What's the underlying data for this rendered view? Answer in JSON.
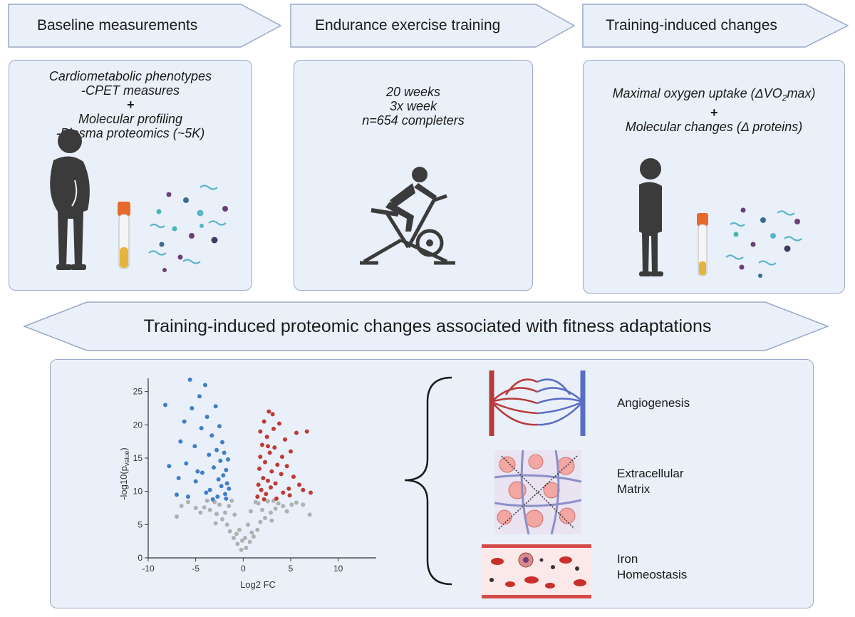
{
  "steps": [
    {
      "label": "Baseline measurements"
    },
    {
      "label": "Endurance exercise training"
    },
    {
      "label": "Training-induced changes"
    }
  ],
  "panel1": {
    "line1": "Cardiometabolic phenotypes",
    "line2": "-CPET measures",
    "line3": "+",
    "line4": "Molecular profiling",
    "line5": "-Plasma proteomics (~5K)"
  },
  "panel2": {
    "line1": "20 weeks",
    "line2": "3x week",
    "line3": "n=654 completers"
  },
  "panel3": {
    "line1_pre": "Maximal oxygen uptake (ΔVO",
    "line1_sub": "2",
    "line1_post": "max)",
    "line2": "+",
    "line3": "Molecular changes (Δ proteins)"
  },
  "banner": "Training-induced proteomic changes associated with fitness adaptations",
  "chart_data": {
    "type": "scatter",
    "xlabel": "Log2 FC",
    "ylabel_main": "-log10(p",
    "ylabel_sub": "value",
    "ylabel_close": ")",
    "xlim": [
      -10,
      14
    ],
    "ylim": [
      0,
      27
    ],
    "xticks": [
      -10,
      -5,
      0,
      5,
      10
    ],
    "yticks": [
      0,
      5,
      10,
      15,
      20,
      25
    ],
    "series": [
      {
        "color": "#b0b0b0",
        "points": [
          [
            -0.2,
            1.2
          ],
          [
            0.3,
            1.5
          ],
          [
            -0.6,
            2.1
          ],
          [
            0.7,
            2.4
          ],
          [
            -1.0,
            3.0
          ],
          [
            1.1,
            3.2
          ],
          [
            -1.4,
            4.0
          ],
          [
            1.5,
            4.2
          ],
          [
            -1.7,
            5.0
          ],
          [
            1.8,
            5.4
          ],
          [
            -2.2,
            5.8
          ],
          [
            2.3,
            6.0
          ],
          [
            -2.8,
            6.6
          ],
          [
            2.9,
            6.8
          ],
          [
            -3.5,
            7.2
          ],
          [
            3.4,
            7.4
          ],
          [
            -4.1,
            7.6
          ],
          [
            4.2,
            7.8
          ],
          [
            -5.0,
            7.5
          ],
          [
            5.1,
            8.0
          ],
          [
            -6.5,
            7.8
          ],
          [
            6.3,
            8.0
          ],
          [
            -0.9,
            6.5
          ],
          [
            0.8,
            7.0
          ],
          [
            -1.5,
            7.8
          ],
          [
            1.6,
            8.2
          ],
          [
            -2.5,
            8.0
          ],
          [
            2.6,
            8.5
          ],
          [
            -3.0,
            8.4
          ],
          [
            3.2,
            8.6
          ],
          [
            -0.4,
            4.2
          ],
          [
            0.5,
            5.0
          ],
          [
            -1.9,
            6.8
          ],
          [
            2.0,
            7.2
          ],
          [
            -4.5,
            6.8
          ],
          [
            4.6,
            7.0
          ],
          [
            -7.0,
            6.2
          ],
          [
            7.0,
            6.5
          ],
          [
            -1.2,
            8.6
          ],
          [
            1.3,
            8.4
          ],
          [
            -0.7,
            3.6
          ],
          [
            0.9,
            3.8
          ],
          [
            -2.9,
            5.2
          ],
          [
            3.0,
            5.6
          ],
          [
            -0.1,
            2.6
          ],
          [
            0.2,
            3.0
          ],
          [
            -5.8,
            8.4
          ],
          [
            5.6,
            8.3
          ],
          [
            -3.8,
            8.6
          ],
          [
            3.7,
            8.2
          ]
        ]
      },
      {
        "color": "#3f7ec8",
        "points": [
          [
            -8.2,
            23.0
          ],
          [
            -7.8,
            13.8
          ],
          [
            -7.0,
            9.5
          ],
          [
            -6.6,
            17.5
          ],
          [
            -6.2,
            20.5
          ],
          [
            -6.0,
            14.2
          ],
          [
            -5.6,
            26.8
          ],
          [
            -5.4,
            22.5
          ],
          [
            -5.1,
            16.8
          ],
          [
            -5.0,
            11.5
          ],
          [
            -4.6,
            24.3
          ],
          [
            -4.4,
            19.5
          ],
          [
            -4.3,
            12.8
          ],
          [
            -4.0,
            26.0
          ],
          [
            -3.8,
            21.2
          ],
          [
            -3.6,
            15.5
          ],
          [
            -3.5,
            10.2
          ],
          [
            -3.3,
            18.4
          ],
          [
            -3.1,
            13.6
          ],
          [
            -2.9,
            22.8
          ],
          [
            -2.8,
            16.2
          ],
          [
            -2.6,
            11.8
          ],
          [
            -2.5,
            19.8
          ],
          [
            -2.4,
            14.6
          ],
          [
            -2.3,
            10.8
          ],
          [
            -2.2,
            17.4
          ],
          [
            -2.1,
            12.4
          ],
          [
            -2.0,
            15.8
          ],
          [
            -1.9,
            9.6
          ],
          [
            -1.8,
            13.2
          ],
          [
            -1.7,
            11.2
          ],
          [
            -1.6,
            14.8
          ],
          [
            -1.5,
            10.4
          ],
          [
            -3.9,
            9.8
          ],
          [
            -4.8,
            13.0
          ],
          [
            -5.8,
            9.2
          ],
          [
            -6.8,
            12.0
          ],
          [
            -3.2,
            8.8
          ],
          [
            -2.7,
            9.2
          ],
          [
            -1.8,
            8.9
          ]
        ]
      },
      {
        "color": "#c03a32",
        "points": [
          [
            1.5,
            9.2
          ],
          [
            1.6,
            11.0
          ],
          [
            1.7,
            13.4
          ],
          [
            1.8,
            15.2
          ],
          [
            1.9,
            10.2
          ],
          [
            2.0,
            17.0
          ],
          [
            2.1,
            12.0
          ],
          [
            2.2,
            20.5
          ],
          [
            2.3,
            14.4
          ],
          [
            2.4,
            9.6
          ],
          [
            2.5,
            18.2
          ],
          [
            2.6,
            11.6
          ],
          [
            2.7,
            22.0
          ],
          [
            2.8,
            15.8
          ],
          [
            2.9,
            10.6
          ],
          [
            3.0,
            13.0
          ],
          [
            3.2,
            19.4
          ],
          [
            3.3,
            16.6
          ],
          [
            3.4,
            11.2
          ],
          [
            3.6,
            14.0
          ],
          [
            3.8,
            20.2
          ],
          [
            4.0,
            12.6
          ],
          [
            4.2,
            9.8
          ],
          [
            4.4,
            17.8
          ],
          [
            4.6,
            13.8
          ],
          [
            4.8,
            10.4
          ],
          [
            5.0,
            16.0
          ],
          [
            5.3,
            12.2
          ],
          [
            5.6,
            18.8
          ],
          [
            5.9,
            11.0
          ],
          [
            6.3,
            10.2
          ],
          [
            6.7,
            19.0
          ],
          [
            7.1,
            9.8
          ],
          [
            3.5,
            8.9
          ],
          [
            2.2,
            8.8
          ],
          [
            4.9,
            9.4
          ],
          [
            1.8,
            19.0
          ],
          [
            3.1,
            21.6
          ],
          [
            2.6,
            16.8
          ],
          [
            4.1,
            15.2
          ]
        ]
      }
    ]
  },
  "pathways": [
    {
      "line1": "Angiogenesis",
      "line2": ""
    },
    {
      "line1": "Extracellular",
      "line2": "Matrix"
    },
    {
      "line1": "Iron",
      "line2": "Homeostasis"
    }
  ]
}
